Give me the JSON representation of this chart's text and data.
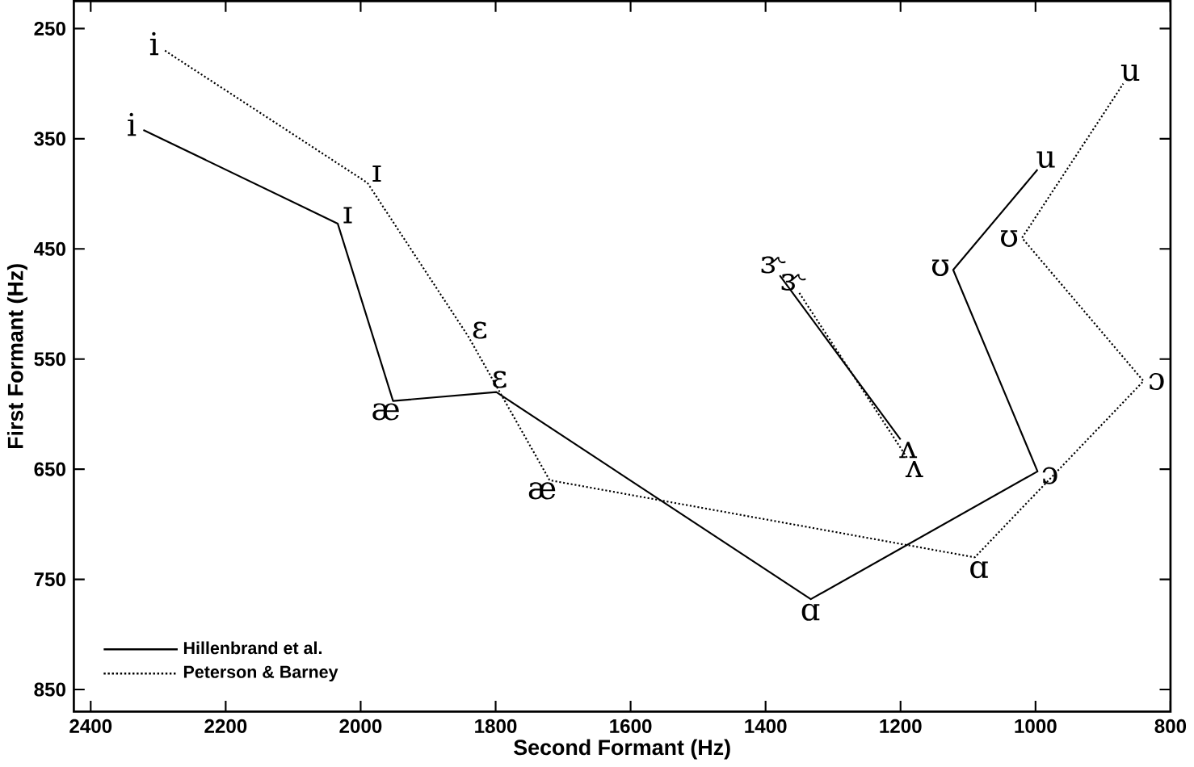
{
  "chart_data": {
    "type": "line",
    "xlabel": "Second Formant (Hz)",
    "ylabel": "First Formant (Hz)",
    "xlim": [
      2425,
      800
    ],
    "xticks": [
      2400,
      2200,
      2000,
      1800,
      1600,
      1400,
      1200,
      1000,
      800
    ],
    "ylim": [
      870,
      225
    ],
    "yticks": [
      250,
      350,
      450,
      550,
      650,
      750,
      850
    ],
    "grid": false,
    "legend": "bottom left",
    "marker": "none",
    "series": [
      {
        "name": "Hillenbrand et al.",
        "color": "#000000",
        "line_style": "solid",
        "x": [
          2322,
          2034,
          1952,
          1799,
          1333,
          997,
          1122,
          997
        ],
        "values": [
          342,
          427,
          588,
          580,
          768,
          652,
          469,
          378
        ]
      },
      {
        "name": "Peterson & Barney",
        "color": "#000000",
        "line_style": "dotted",
        "x": [
          2290,
          1990,
          1840,
          1720,
          1090,
          840,
          1020,
          870
        ],
        "values": [
          270,
          390,
          530,
          660,
          730,
          570,
          440,
          300
        ]
      },
      {
        "color": "#000000",
        "line_style": "solid",
        "x": [
          1379,
          1200
        ],
        "values": [
          474,
          623
        ]
      },
      {
        "color": "#000000",
        "line_style": "dotted",
        "x": [
          1350,
          1190
        ],
        "values": [
          490,
          640
        ]
      }
    ],
    "annotations": [
      {
        "text": "i",
        "x": 2322,
        "y": 342
      },
      {
        "text": "ɪ",
        "x": 2034,
        "y": 427
      },
      {
        "text": "æ",
        "x": 1952,
        "y": 588
      },
      {
        "text": "ɛ",
        "x": 1799,
        "y": 580
      },
      {
        "text": "ɑ",
        "x": 1333,
        "y": 768
      },
      {
        "text": "ɔ",
        "x": 997,
        "y": 652
      },
      {
        "text": "ʊ",
        "x": 1122,
        "y": 469
      },
      {
        "text": "u",
        "x": 997,
        "y": 378
      },
      {
        "text": "ɝ",
        "x": 1379,
        "y": 474
      },
      {
        "text": "ʌ",
        "x": 1200,
        "y": 623
      },
      {
        "text": "i",
        "x": 2290,
        "y": 270
      },
      {
        "text": "ɪ",
        "x": 1990,
        "y": 390
      },
      {
        "text": "ɛ",
        "x": 1840,
        "y": 530
      },
      {
        "text": "æ",
        "x": 1720,
        "y": 660
      },
      {
        "text": "ɑ",
        "x": 1090,
        "y": 730
      },
      {
        "text": "ɔ",
        "x": 840,
        "y": 570
      },
      {
        "text": "ʊ",
        "x": 1020,
        "y": 440
      },
      {
        "text": "u",
        "x": 870,
        "y": 300
      },
      {
        "text": "ɝ",
        "x": 1350,
        "y": 490
      },
      {
        "text": "ʌ",
        "x": 1190,
        "y": 640
      }
    ]
  }
}
